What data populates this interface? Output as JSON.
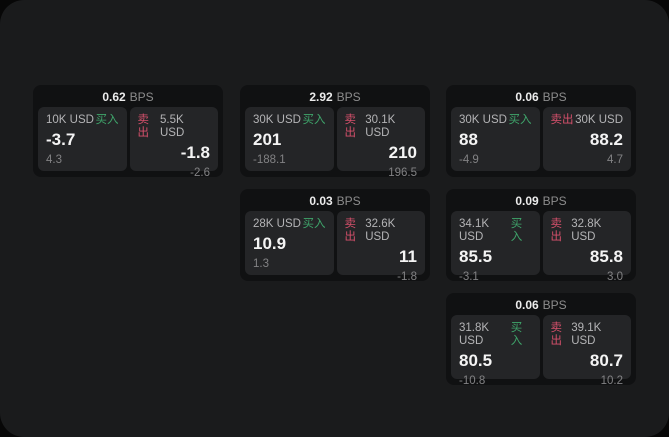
{
  "labels": {
    "bps_unit": "BPS",
    "buy": "买入",
    "sell": "卖出"
  },
  "colors": {
    "buy_green": "#3fa56b",
    "sell_red": "#d5506b",
    "window_bg": "#1a1b1c",
    "card_bg": "#101112",
    "panel_bg": "#242527"
  },
  "cards": [
    {
      "bps": "0.62",
      "buy": {
        "amount": "10K USD",
        "value": "-3.7",
        "delta": "4.3"
      },
      "sell": {
        "amount": "5.5K USD",
        "value": "-1.8",
        "delta": "-2.6"
      }
    },
    {
      "bps": "2.92",
      "buy": {
        "amount": "30K USD",
        "value": "201",
        "delta": "-188.1"
      },
      "sell": {
        "amount": "30.1K USD",
        "value": "210",
        "delta": "196.5"
      }
    },
    {
      "bps": "0.06",
      "buy": {
        "amount": "30K USD",
        "value": "88",
        "delta": "-4.9"
      },
      "sell": {
        "amount": "30K USD",
        "value": "88.2",
        "delta": "4.7"
      }
    },
    {
      "bps": "0.03",
      "buy": {
        "amount": "28K USD",
        "value": "10.9",
        "delta": "1.3"
      },
      "sell": {
        "amount": "32.6K USD",
        "value": "11",
        "delta": "-1.8"
      }
    },
    {
      "bps": "0.09",
      "buy": {
        "amount": "34.1K USD",
        "value": "85.5",
        "delta": "-3.1"
      },
      "sell": {
        "amount": "32.8K USD",
        "value": "85.8",
        "delta": "3.0"
      }
    },
    {
      "bps": "0.06",
      "buy": {
        "amount": "31.8K USD",
        "value": "80.5",
        "delta": "-10.8"
      },
      "sell": {
        "amount": "39.1K USD",
        "value": "80.7",
        "delta": "10.2"
      }
    }
  ]
}
